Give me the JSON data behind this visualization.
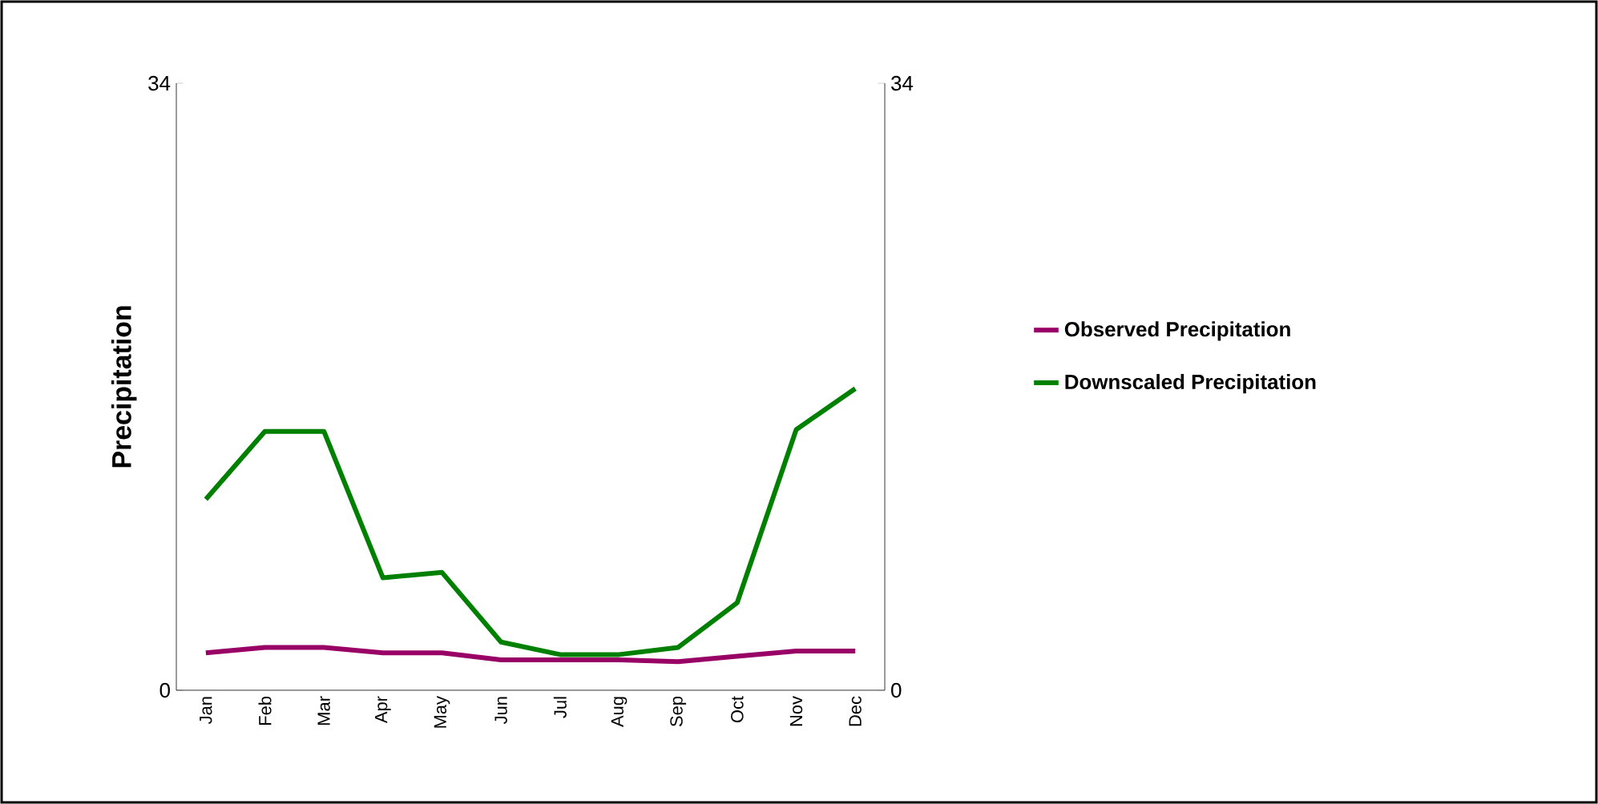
{
  "chart_data": {
    "type": "line",
    "ylabel": "Precipitation",
    "categories": [
      "Jan",
      "Feb",
      "Mar",
      "Apr",
      "May",
      "Jun",
      "Jul",
      "Aug",
      "Sep",
      "Oct",
      "Nov",
      "Dec"
    ],
    "series": [
      {
        "name": "Observed Precipitation",
        "color": "#990066",
        "values": [
          2.1,
          2.4,
          2.4,
          2.1,
          2.1,
          1.7,
          1.7,
          1.7,
          1.6,
          1.9,
          2.2,
          2.2
        ]
      },
      {
        "name": "Downscaled Precipitation",
        "color": "#008000",
        "values": [
          10.7,
          14.5,
          14.5,
          6.3,
          6.6,
          2.7,
          2.0,
          2.0,
          2.4,
          4.9,
          14.6,
          16.9
        ]
      }
    ],
    "ylim": [
      0,
      34
    ],
    "yticks": [
      0,
      34
    ],
    "y2lim": [
      0,
      34
    ],
    "y2ticks": [
      0,
      34
    ],
    "grid": false,
    "legend": "right",
    "marker": "none",
    "line_style": "solid"
  }
}
